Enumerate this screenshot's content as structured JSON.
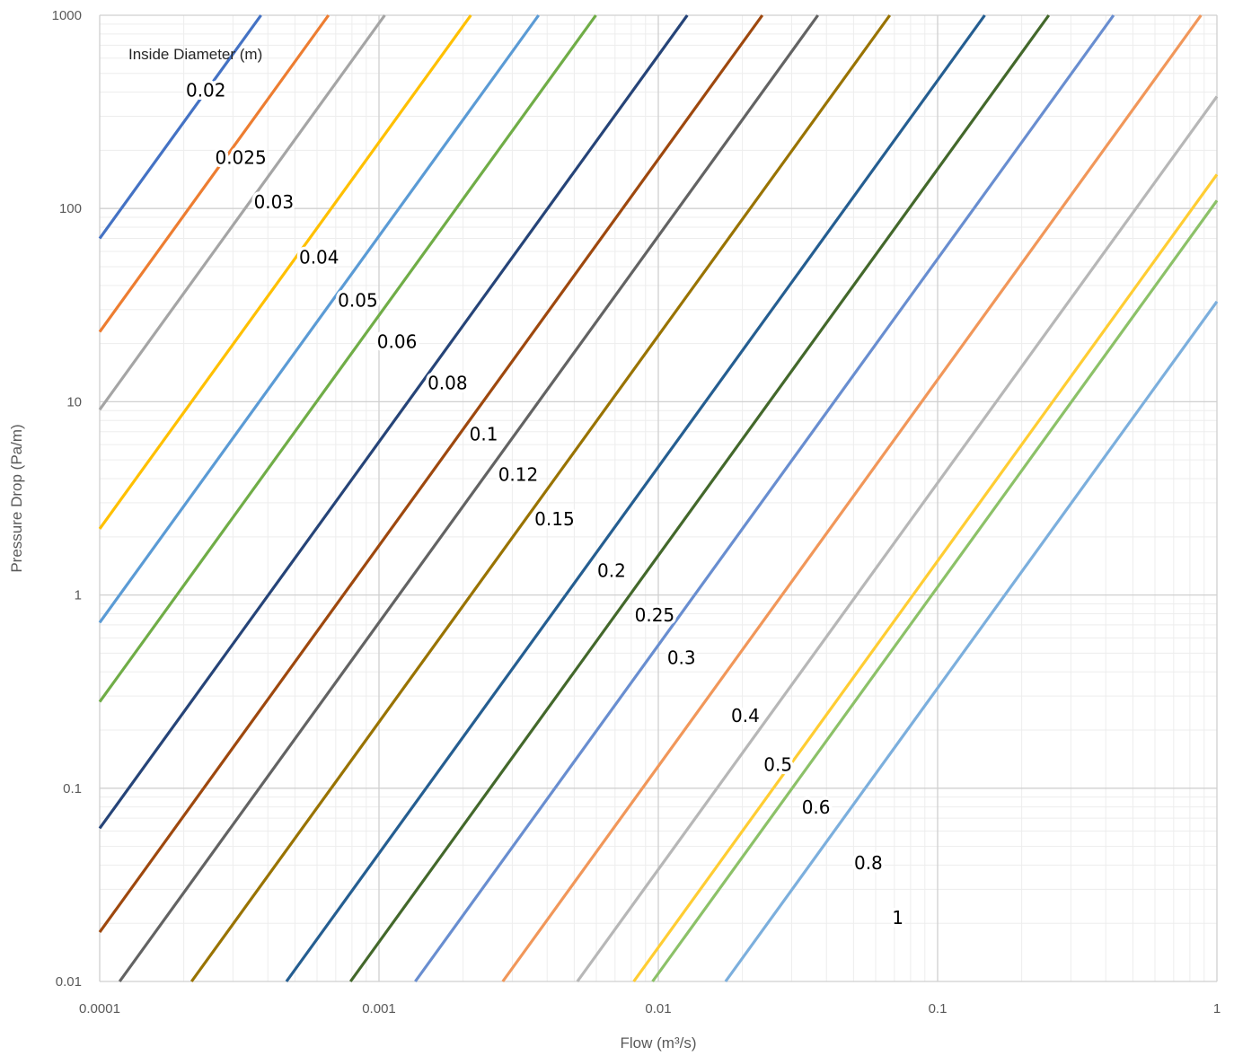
{
  "chart_data": {
    "type": "line",
    "xlabel": "Flow (m³/s)",
    "ylabel": "Pressure Drop (Pa/m)",
    "x_scale": "log",
    "y_scale": "log",
    "xlim": [
      0.0001,
      1
    ],
    "ylim": [
      0.01,
      1000
    ],
    "grid": true,
    "x_ticks": [
      "0.0001",
      "0.001",
      "0.01",
      "0.1",
      "1"
    ],
    "y_ticks": [
      "0.01",
      "0.1",
      "1",
      "10",
      "100",
      "1000"
    ],
    "legend_title": "Inside Diameter (m)",
    "slope": 2,
    "series": [
      {
        "name": "0.02",
        "color": "#4472C4",
        "y_at_x_min": 70
      },
      {
        "name": "0.025",
        "color": "#ED7D31",
        "y_at_x_min": 23
      },
      {
        "name": "0.03",
        "color": "#A5A5A5",
        "y_at_x_min": 9.1
      },
      {
        "name": "0.04",
        "color": "#FFC000",
        "y_at_x_min": 2.2
      },
      {
        "name": "0.05",
        "color": "#5B9BD5",
        "y_at_x_min": 0.72
      },
      {
        "name": "0.06",
        "color": "#70AD47",
        "y_at_x_min": 0.28
      },
      {
        "name": "0.08",
        "color": "#264478",
        "y_at_x_min": 0.062
      },
      {
        "name": "0.1",
        "color": "#9E480E",
        "y_at_x_min": 0.018
      },
      {
        "name": "0.12",
        "color": "#636363",
        "y_at_x_min": 0.0072
      },
      {
        "name": "0.15",
        "color": "#997300",
        "y_at_x_min": 0.0022
      },
      {
        "name": "0.2",
        "color": "#255E91",
        "y_at_x_min": 0.00046
      },
      {
        "name": "0.25",
        "color": "#43682B",
        "y_at_x_min": 0.00016
      },
      {
        "name": "0.3",
        "color": "#698ED0",
        "y_at_x_min": 5.5e-05
      },
      {
        "name": "0.4",
        "color": "#F1975A",
        "y_at_x_min": 1.3e-05
      },
      {
        "name": "0.5",
        "color": "#B7B7B7",
        "y_at_x_min": 3.8e-06
      },
      {
        "name": "0.6",
        "color": "#FFCD33",
        "y_at_x_min": 1.5e-06
      },
      {
        "name": "0.8",
        "color": "#7CAFDD",
        "y_at_x_min": 3.3e-07
      },
      {
        "name": "1",
        "color": "#8CC168",
        "y_at_x_min": 1.1e-06
      }
    ],
    "labels": [
      {
        "series": "0.02",
        "x": 0.00024,
        "y": 380
      },
      {
        "series": "0.025",
        "x": 0.00032,
        "y": 170
      },
      {
        "series": "0.03",
        "x": 0.00042,
        "y": 100
      },
      {
        "series": "0.04",
        "x": 0.00061,
        "y": 52
      },
      {
        "series": "0.05",
        "x": 0.00084,
        "y": 31
      },
      {
        "series": "0.06",
        "x": 0.00116,
        "y": 19
      },
      {
        "series": "0.08",
        "x": 0.00176,
        "y": 11.6
      },
      {
        "series": "0.1",
        "x": 0.00237,
        "y": 6.3
      },
      {
        "series": "0.12",
        "x": 0.00315,
        "y": 3.9
      },
      {
        "series": "0.15",
        "x": 0.00425,
        "y": 2.3
      },
      {
        "series": "0.2",
        "x": 0.0068,
        "y": 1.24
      },
      {
        "series": "0.25",
        "x": 0.0097,
        "y": 0.73
      },
      {
        "series": "0.3",
        "x": 0.0121,
        "y": 0.44
      },
      {
        "series": "0.4",
        "x": 0.0205,
        "y": 0.22
      },
      {
        "series": "0.5",
        "x": 0.0268,
        "y": 0.123
      },
      {
        "series": "0.6",
        "x": 0.0367,
        "y": 0.074
      },
      {
        "series": "0.8",
        "x": 0.0565,
        "y": 0.038
      },
      {
        "series": "1",
        "x": 0.072,
        "y": 0.0198
      }
    ]
  }
}
